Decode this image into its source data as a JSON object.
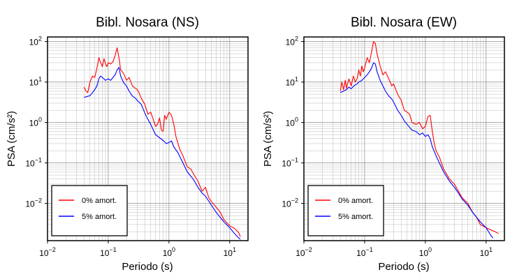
{
  "colors": {
    "series_0": "#ff0000",
    "series_5": "#0000ff"
  },
  "chart_data": [
    {
      "type": "line",
      "title": "Bibl. Nosara (NS)",
      "xlabel": "Periodo (s)",
      "ylabel": "PSA (cm/s²)",
      "xscale": "log",
      "yscale": "log",
      "xlim": [
        0.01,
        20
      ],
      "ylim": [
        0.0012,
        130
      ],
      "x_ticks": [
        {
          "base": "10",
          "exp": "−2"
        },
        {
          "base": "10",
          "exp": "−1"
        },
        {
          "base": "10",
          "exp": "0"
        },
        {
          "base": "10",
          "exp": "1"
        }
      ],
      "y_ticks": [
        {
          "base": "10",
          "exp": "−2"
        },
        {
          "base": "10",
          "exp": "−1"
        },
        {
          "base": "10",
          "exp": "0"
        },
        {
          "base": "10",
          "exp": "1"
        },
        {
          "base": "10",
          "exp": "2"
        }
      ],
      "grid": true,
      "legend_position": "bottom-left",
      "series": [
        {
          "name": "0% amort.",
          "color": "#ff0000",
          "x": [
            0.04,
            0.043,
            0.046,
            0.05,
            0.055,
            0.06,
            0.065,
            0.07,
            0.075,
            0.08,
            0.085,
            0.09,
            0.095,
            0.1,
            0.11,
            0.12,
            0.13,
            0.14,
            0.15,
            0.16,
            0.17,
            0.18,
            0.2,
            0.22,
            0.25,
            0.28,
            0.3,
            0.32,
            0.35,
            0.4,
            0.45,
            0.5,
            0.55,
            0.6,
            0.65,
            0.7,
            0.75,
            0.8,
            0.85,
            0.9,
            1.0,
            1.1,
            1.2,
            1.3,
            1.5,
            1.7,
            2.0,
            2.3,
            2.6,
            3.0,
            3.5,
            4.0,
            4.5,
            5.0,
            6.0,
            7.0,
            8.0,
            10.0,
            12.0,
            14.0,
            15.0
          ],
          "y": [
            7.5,
            6.0,
            5.5,
            10.0,
            14.0,
            13.0,
            22.0,
            40.0,
            30.0,
            24.0,
            38.0,
            28.0,
            24.0,
            30.0,
            28.0,
            32.0,
            45.0,
            70.0,
            40.0,
            20.0,
            18.0,
            16.0,
            11.0,
            13.0,
            8.0,
            7.0,
            6.5,
            5.5,
            4.0,
            2.8,
            1.6,
            1.8,
            1.2,
            0.8,
            0.9,
            1.3,
            0.65,
            0.6,
            1.5,
            1.2,
            1.8,
            1.5,
            0.9,
            0.45,
            0.22,
            0.15,
            0.08,
            0.07,
            0.05,
            0.035,
            0.02,
            0.025,
            0.014,
            0.011,
            0.008,
            0.006,
            0.004,
            0.0028,
            0.0024,
            0.0019,
            0.0015
          ]
        },
        {
          "name": "5% amort.",
          "color": "#0000ff",
          "x": [
            0.04,
            0.045,
            0.05,
            0.055,
            0.06,
            0.065,
            0.07,
            0.075,
            0.08,
            0.09,
            0.1,
            0.11,
            0.12,
            0.13,
            0.14,
            0.15,
            0.16,
            0.18,
            0.2,
            0.22,
            0.25,
            0.28,
            0.3,
            0.35,
            0.4,
            0.45,
            0.5,
            0.6,
            0.7,
            0.8,
            0.9,
            1.0,
            1.1,
            1.2,
            1.4,
            1.6,
            2.0,
            2.5,
            3.0,
            3.5,
            4.0,
            5.0,
            6.0,
            8.0,
            10.0,
            12.0,
            14.0,
            15.0
          ],
          "y": [
            4.2,
            4.4,
            4.6,
            5.5,
            6.5,
            8.0,
            12.0,
            14.0,
            13.0,
            11.0,
            12.0,
            11.0,
            13.0,
            15.0,
            20.0,
            23.0,
            14.0,
            9.5,
            8.0,
            6.0,
            4.5,
            4.0,
            3.5,
            2.8,
            1.7,
            1.2,
            0.9,
            0.5,
            0.42,
            0.36,
            0.3,
            0.32,
            0.35,
            0.25,
            0.18,
            0.12,
            0.06,
            0.04,
            0.025,
            0.018,
            0.015,
            0.009,
            0.006,
            0.0035,
            0.0025,
            0.0018,
            0.0014,
            0.0013
          ]
        }
      ]
    },
    {
      "type": "line",
      "title": "Bibl. Nosara (EW)",
      "xlabel": "Periodo (s)",
      "ylabel": "PSA (cm/s²)",
      "xscale": "log",
      "yscale": "log",
      "xlim": [
        0.01,
        20
      ],
      "ylim": [
        0.0012,
        130
      ],
      "x_ticks": [
        {
          "base": "10",
          "exp": "−2"
        },
        {
          "base": "10",
          "exp": "−1"
        },
        {
          "base": "10",
          "exp": "0"
        },
        {
          "base": "10",
          "exp": "1"
        }
      ],
      "y_ticks": [
        {
          "base": "10",
          "exp": "−2"
        },
        {
          "base": "10",
          "exp": "−1"
        },
        {
          "base": "10",
          "exp": "0"
        },
        {
          "base": "10",
          "exp": "1"
        },
        {
          "base": "10",
          "exp": "2"
        }
      ],
      "grid": true,
      "legend_position": "bottom-left",
      "series": [
        {
          "name": "0% amort.",
          "color": "#ff0000",
          "x": [
            0.04,
            0.042,
            0.045,
            0.048,
            0.05,
            0.055,
            0.06,
            0.065,
            0.07,
            0.075,
            0.08,
            0.085,
            0.09,
            0.095,
            0.1,
            0.11,
            0.12,
            0.13,
            0.14,
            0.15,
            0.16,
            0.18,
            0.2,
            0.22,
            0.25,
            0.28,
            0.3,
            0.35,
            0.4,
            0.45,
            0.5,
            0.55,
            0.6,
            0.7,
            0.8,
            0.9,
            1.0,
            1.1,
            1.2,
            1.3,
            1.4,
            1.5,
            1.7,
            2.0,
            2.5,
            3.0,
            3.5,
            4.0,
            5.0,
            6.0,
            7.0,
            8.0,
            10.0,
            12.0,
            14.0,
            16.0
          ],
          "y": [
            6.0,
            10.0,
            6.5,
            11.0,
            7.0,
            12.0,
            8.0,
            14.0,
            10.0,
            12.0,
            20.0,
            14.0,
            25.0,
            18.0,
            22.0,
            40.0,
            30.0,
            55.0,
            100.0,
            90.0,
            50.0,
            25.0,
            15.0,
            18.0,
            12.0,
            8.0,
            9.0,
            5.0,
            3.5,
            2.0,
            1.8,
            1.6,
            1.0,
            0.9,
            1.0,
            0.7,
            0.8,
            1.4,
            1.5,
            0.6,
            0.3,
            0.2,
            0.14,
            0.07,
            0.04,
            0.03,
            0.02,
            0.014,
            0.01,
            0.006,
            0.0045,
            0.003,
            0.0025,
            0.0022,
            0.002,
            0.0018
          ]
        },
        {
          "name": "5% amort.",
          "color": "#0000ff",
          "x": [
            0.04,
            0.045,
            0.05,
            0.055,
            0.06,
            0.065,
            0.07,
            0.075,
            0.08,
            0.09,
            0.1,
            0.11,
            0.12,
            0.13,
            0.14,
            0.15,
            0.16,
            0.18,
            0.2,
            0.22,
            0.25,
            0.28,
            0.3,
            0.35,
            0.4,
            0.45,
            0.5,
            0.6,
            0.7,
            0.8,
            0.9,
            1.0,
            1.1,
            1.2,
            1.3,
            1.5,
            1.7,
            2.0,
            2.5,
            3.0,
            3.5,
            4.0,
            5.0,
            6.0,
            8.0,
            10.0,
            12.0,
            13.0
          ],
          "y": [
            5.5,
            6.0,
            6.5,
            7.5,
            6.8,
            7.8,
            8.5,
            9.0,
            10.0,
            11.0,
            13.0,
            15.0,
            18.0,
            22.0,
            30.0,
            28.0,
            18.0,
            11.0,
            8.0,
            6.0,
            4.5,
            3.8,
            3.2,
            2.0,
            1.5,
            1.1,
            0.9,
            0.65,
            0.6,
            0.5,
            0.55,
            0.45,
            0.5,
            0.4,
            0.25,
            0.15,
            0.1,
            0.06,
            0.035,
            0.025,
            0.018,
            0.013,
            0.009,
            0.006,
            0.0035,
            0.0025,
            0.0016,
            0.0014
          ]
        }
      ]
    }
  ]
}
